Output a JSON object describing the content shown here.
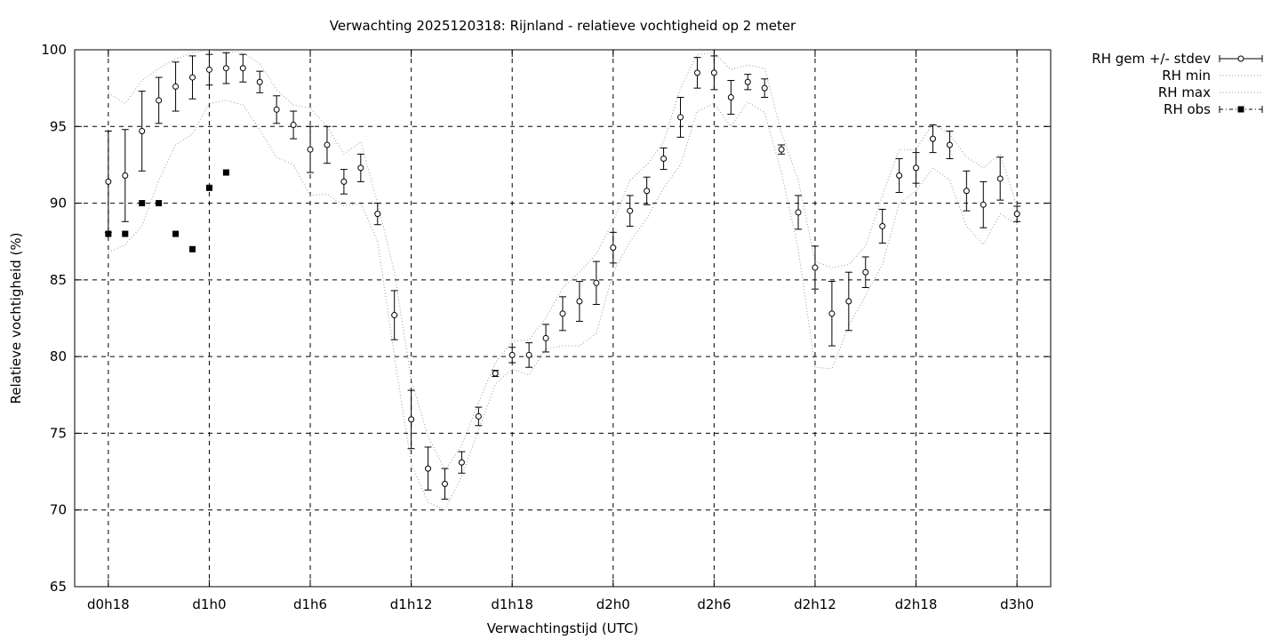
{
  "chart_data": {
    "type": "line",
    "title": "Verwachting 2025120318: Rijnland - relatieve vochtigheid op 2 meter",
    "xlabel": "Verwachtingstijd (UTC)",
    "ylabel": "Relatieve vochtigheid (%)",
    "ylim": [
      65,
      100
    ],
    "xlim_hours": [
      -2,
      56
    ],
    "grid": true,
    "legend_position": "outside-top-right",
    "y_ticks": [
      "65",
      "70",
      "75",
      "80",
      "85",
      "90",
      "95",
      "100"
    ],
    "x_ticks": [
      {
        "label": "d0h18",
        "hour": 0
      },
      {
        "label": "d1h0",
        "hour": 6
      },
      {
        "label": "d1h6",
        "hour": 12
      },
      {
        "label": "d1h12",
        "hour": 18
      },
      {
        "label": "d1h18",
        "hour": 24
      },
      {
        "label": "d2h0",
        "hour": 30
      },
      {
        "label": "d2h6",
        "hour": 36
      },
      {
        "label": "d2h12",
        "hour": 42
      },
      {
        "label": "d2h18",
        "hour": 48
      },
      {
        "label": "d3h0",
        "hour": 54
      }
    ],
    "series": [
      {
        "name": "RH gem +/- stdev",
        "style": "points-errorbars",
        "x": [
          0,
          1,
          2,
          3,
          4,
          5,
          6,
          7,
          8,
          9,
          10,
          11,
          12,
          13,
          14,
          15,
          16,
          17,
          18,
          19,
          20,
          21,
          22,
          23,
          24,
          25,
          26,
          27,
          28,
          29,
          30,
          31,
          32,
          33,
          34,
          35,
          36,
          37,
          38,
          39,
          40,
          41,
          42,
          43,
          44,
          45,
          46,
          47,
          48,
          49,
          50,
          51,
          52,
          53,
          54
        ],
        "values": [
          91.4,
          91.8,
          94.7,
          96.7,
          97.6,
          98.2,
          98.7,
          98.8,
          98.8,
          97.9,
          96.1,
          95.1,
          93.5,
          93.8,
          91.4,
          92.3,
          89.3,
          82.7,
          75.9,
          72.7,
          71.7,
          73.1,
          76.1,
          78.9,
          80.1,
          80.1,
          81.2,
          82.8,
          83.6,
          84.8,
          87.1,
          89.5,
          90.8,
          92.9,
          95.6,
          98.5,
          98.5,
          96.9,
          97.9,
          97.5,
          93.5,
          89.4,
          85.8,
          82.8,
          83.6,
          85.5,
          88.5,
          91.8,
          92.3,
          94.2,
          93.8,
          90.8,
          89.9,
          91.6,
          89.3
        ],
        "stdev": [
          3.3,
          3.0,
          2.6,
          1.5,
          1.6,
          1.4,
          1.0,
          1.0,
          0.9,
          0.7,
          0.9,
          0.9,
          1.5,
          1.2,
          0.8,
          0.9,
          0.7,
          1.6,
          1.9,
          1.4,
          1.0,
          0.7,
          0.6,
          0.2,
          0.5,
          0.8,
          0.9,
          1.1,
          1.3,
          1.4,
          1.0,
          1.0,
          0.9,
          0.7,
          1.3,
          1.0,
          1.1,
          1.1,
          0.5,
          0.6,
          0.3,
          1.1,
          1.4,
          2.1,
          1.9,
          1.0,
          1.1,
          1.1,
          1.0,
          0.9,
          0.9,
          1.3,
          1.5,
          1.4,
          0.5
        ]
      },
      {
        "name": "RH min",
        "style": "dotted-line",
        "x": [
          0,
          1,
          2,
          3,
          4,
          5,
          6,
          7,
          8,
          9,
          10,
          11,
          12,
          13,
          14,
          15,
          16,
          17,
          18,
          19,
          20,
          21,
          22,
          23,
          24,
          25,
          26,
          27,
          28,
          29,
          30,
          31,
          32,
          33,
          34,
          35,
          36,
          37,
          38,
          39,
          40,
          41,
          42,
          43,
          44,
          45,
          46,
          47,
          48,
          49,
          50,
          51,
          52,
          53,
          54
        ],
        "values": [
          86.8,
          87.3,
          88.5,
          91.5,
          93.8,
          94.5,
          96.5,
          96.7,
          96.4,
          94.8,
          93.0,
          92.5,
          90.5,
          90.6,
          89.8,
          90.0,
          87.5,
          80.0,
          73.0,
          70.5,
          70.0,
          72.2,
          75.2,
          78.2,
          79.2,
          78.8,
          80.5,
          80.7,
          80.7,
          81.5,
          85.5,
          87.5,
          89.0,
          91.0,
          92.5,
          96.0,
          96.5,
          95.0,
          96.6,
          95.9,
          92.0,
          87.0,
          79.3,
          79.2,
          82.0,
          84.0,
          86.0,
          90.0,
          90.8,
          92.3,
          91.5,
          88.5,
          87.3,
          89.3,
          88.6
        ]
      },
      {
        "name": "RH max",
        "style": "dotted-line",
        "x": [
          0,
          1,
          2,
          3,
          4,
          5,
          6,
          7,
          8,
          9,
          10,
          11,
          12,
          13,
          14,
          15,
          16,
          17,
          18,
          19,
          20,
          21,
          22,
          23,
          24,
          25,
          26,
          27,
          28,
          29,
          30,
          31,
          32,
          33,
          34,
          35,
          36,
          37,
          38,
          39,
          40,
          41,
          42,
          43,
          44,
          45,
          46,
          47,
          48,
          49,
          50,
          51,
          52,
          53,
          54
        ],
        "values": [
          97.2,
          96.5,
          98.0,
          98.8,
          99.4,
          99.8,
          100.0,
          99.9,
          99.8,
          99.1,
          97.4,
          96.4,
          96.2,
          95.0,
          93.2,
          94.0,
          90.0,
          85.5,
          78.5,
          74.8,
          72.6,
          74.2,
          77.0,
          79.6,
          81.0,
          81.1,
          82.5,
          84.5,
          85.5,
          86.7,
          88.8,
          91.5,
          92.5,
          94.0,
          97.5,
          99.7,
          99.8,
          98.7,
          99.0,
          98.8,
          94.6,
          91.5,
          86.2,
          85.8,
          86.0,
          87.2,
          90.5,
          93.5,
          93.5,
          95.2,
          94.5,
          93.0,
          92.3,
          93.2,
          89.8
        ]
      },
      {
        "name": "RH obs",
        "style": "filled-squares",
        "x": [
          0,
          1,
          2,
          3,
          4,
          5,
          6,
          7
        ],
        "values": [
          88,
          88,
          90,
          90,
          88,
          87,
          91,
          92
        ]
      }
    ]
  }
}
